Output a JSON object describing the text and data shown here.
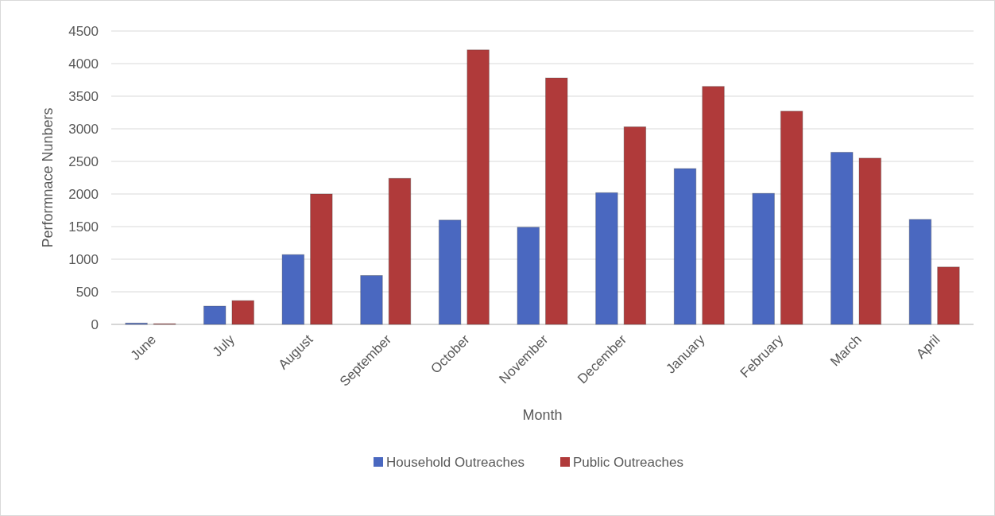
{
  "chart_data": {
    "type": "bar",
    "xlabel": "Month",
    "ylabel": "Performnace Nunbers",
    "categories": [
      "June",
      "July",
      "August",
      "September",
      "October",
      "November",
      "December",
      "January",
      "February",
      "March",
      "April"
    ],
    "series": [
      {
        "name": "Household Outreaches",
        "color": "#4a68c0",
        "values": [
          20,
          280,
          1070,
          750,
          1600,
          1490,
          2020,
          2390,
          2010,
          2640,
          1610
        ]
      },
      {
        "name": "Public Outreaches",
        "color": "#b03a3a",
        "values": [
          10,
          365,
          2000,
          2240,
          4210,
          3780,
          3030,
          3650,
          3270,
          2550,
          880
        ]
      }
    ],
    "ylim": [
      0,
      4500
    ],
    "yticks": [
      0,
      500,
      1000,
      1500,
      2000,
      2500,
      3000,
      3500,
      4000,
      4500
    ],
    "grid": "y",
    "legend": "bottom"
  }
}
